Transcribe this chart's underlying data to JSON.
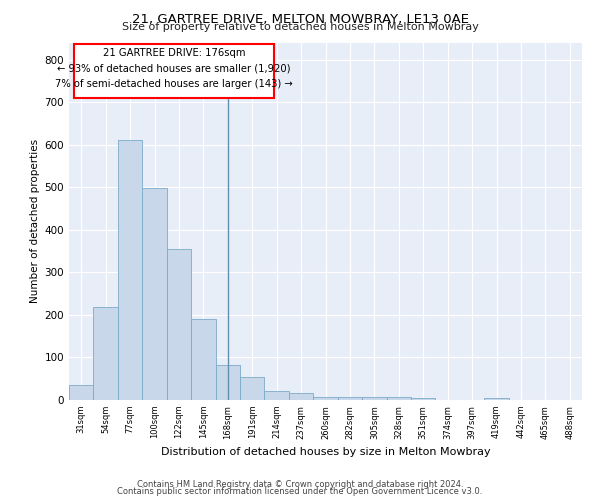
{
  "title1": "21, GARTREE DRIVE, MELTON MOWBRAY, LE13 0AE",
  "title2": "Size of property relative to detached houses in Melton Mowbray",
  "xlabel": "Distribution of detached houses by size in Melton Mowbray",
  "ylabel": "Number of detached properties",
  "bar_labels": [
    "31sqm",
    "54sqm",
    "77sqm",
    "100sqm",
    "122sqm",
    "145sqm",
    "168sqm",
    "191sqm",
    "214sqm",
    "237sqm",
    "260sqm",
    "282sqm",
    "305sqm",
    "328sqm",
    "351sqm",
    "374sqm",
    "397sqm",
    "419sqm",
    "442sqm",
    "465sqm",
    "488sqm"
  ],
  "bar_values": [
    35,
    218,
    610,
    498,
    355,
    190,
    83,
    55,
    22,
    16,
    8,
    6,
    8,
    6,
    5,
    0,
    0,
    5,
    0,
    0,
    0
  ],
  "bar_color": "#c8d8ea",
  "bar_edge_color": "#7aaac8",
  "annotation_title": "21 GARTREE DRIVE: 176sqm",
  "annotation_line1": "← 93% of detached houses are smaller (1,920)",
  "annotation_line2": "7% of semi-detached houses are larger (143) →",
  "ylim": [
    0,
    840
  ],
  "yticks": [
    0,
    100,
    200,
    300,
    400,
    500,
    600,
    700,
    800
  ],
  "plot_bg_color": "#e8eef8",
  "footer1": "Contains HM Land Registry data © Crown copyright and database right 2024.",
  "footer2": "Contains public sector information licensed under the Open Government Licence v3.0."
}
